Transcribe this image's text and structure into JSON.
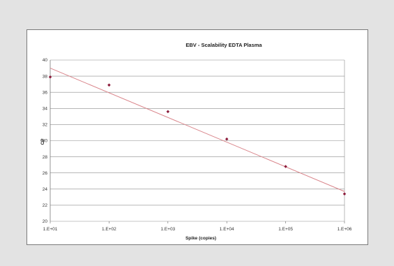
{
  "chart_data": {
    "type": "scatter",
    "title": "EBV - Scalability EDTA Plasma",
    "xlabel": "Spike (copies)",
    "ylabel": "CP",
    "x_scale": "log",
    "x_ticks": [
      "1.E+01",
      "1.E+02",
      "1.E+03",
      "1.E+04",
      "1.E+05",
      "1.E+06"
    ],
    "y_ticks": [
      "20",
      "22",
      "24",
      "26",
      "28",
      "30",
      "32",
      "34",
      "36",
      "38",
      "40"
    ],
    "ylim": [
      20,
      40
    ],
    "xlim": [
      10,
      1000000
    ],
    "grid": "horizontal",
    "series": [
      {
        "points": [
          {
            "x": 10,
            "y": 37.9
          },
          {
            "x": 100,
            "y": 36.9
          },
          {
            "x": 1000,
            "y": 33.6
          },
          {
            "x": 10000,
            "y": 30.2
          },
          {
            "x": 100000,
            "y": 26.8
          },
          {
            "x": 1000000,
            "y": 23.4
          }
        ],
        "color": "#8b1a3a"
      }
    ],
    "trendline": {
      "start": {
        "x": 10,
        "y": 39.0
      },
      "end": {
        "x": 1000000,
        "y": 23.7
      },
      "color": "#d9848a"
    }
  }
}
